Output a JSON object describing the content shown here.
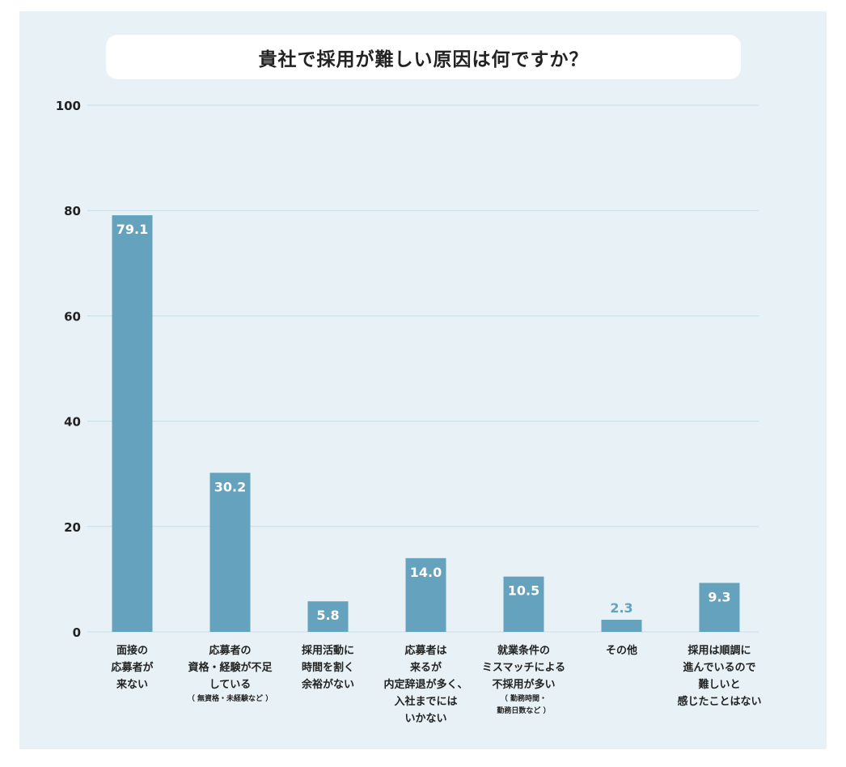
{
  "colors": {
    "panel_bg": "#e8f2f6",
    "bar": "#65a2bd",
    "label_inside": "#ffffff",
    "label_outside": "#65a2bd",
    "gridline": "#c8dde5",
    "text": "#222222"
  },
  "chart_data": {
    "type": "bar",
    "title": "貴社で採用が難しい原因は何ですか？",
    "xlabel": "",
    "ylabel": "",
    "ylim": [
      0,
      100
    ],
    "yticks": [
      "100",
      "80",
      "60",
      "40",
      "20",
      "0"
    ],
    "grid": true,
    "categories": [
      {
        "lines": [
          "面接の",
          "応募者が",
          "来ない"
        ],
        "note": []
      },
      {
        "lines": [
          "応募者の",
          "資格・経験が不足",
          "している"
        ],
        "note": [
          "（ 無資格・未経験など ）"
        ]
      },
      {
        "lines": [
          "採用活動に",
          "時間を割く",
          "余裕がない"
        ],
        "note": []
      },
      {
        "lines": [
          "応募者は",
          "来るが",
          "内定辞退が多く、",
          "入社までには",
          "いかない"
        ],
        "note": []
      },
      {
        "lines": [
          "就業条件の",
          "ミスマッチによる",
          "不採用が多い"
        ],
        "note": [
          "（ 勤務時間・",
          "勤務日数など ）"
        ]
      },
      {
        "lines": [
          "その他"
        ],
        "note": []
      },
      {
        "lines": [
          "採用は順調に",
          "進んでいるので",
          "難しいと",
          "感じたことはない"
        ],
        "note": []
      }
    ],
    "values": [
      79.1,
      30.2,
      5.8,
      14.0,
      10.5,
      2.3,
      9.3
    ],
    "value_labels": [
      "79.1",
      "30.2",
      "5.8",
      "14.0",
      "10.5",
      "2.3",
      "9.3"
    ]
  }
}
